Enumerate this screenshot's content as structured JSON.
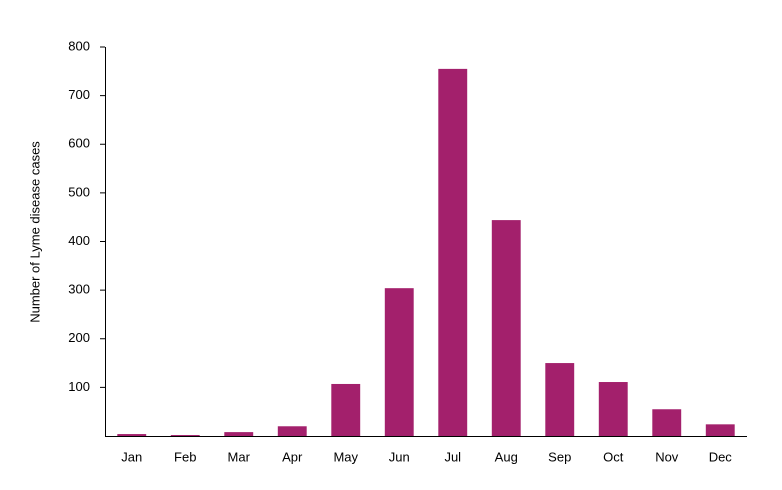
{
  "chart_data": {
    "type": "bar",
    "ylabel": "Number of Lyme disease cases",
    "categories": [
      "Jan",
      "Feb",
      "Mar",
      "Apr",
      "May",
      "Jun",
      "Jul",
      "Aug",
      "Sep",
      "Oct",
      "Nov",
      "Dec"
    ],
    "values": [
      4,
      2,
      8,
      20,
      107,
      304,
      755,
      444,
      150,
      111,
      55,
      24
    ],
    "color": "#a3206c",
    "ylim": [
      0,
      800
    ],
    "yticks": [
      100,
      200,
      300,
      400,
      500,
      600,
      700,
      800
    ],
    "grid": false
  }
}
